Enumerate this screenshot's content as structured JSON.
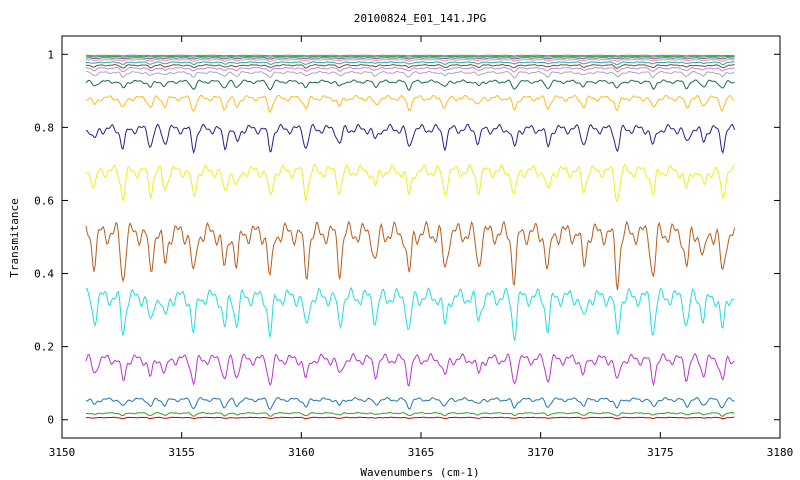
{
  "chart_data": {
    "type": "line",
    "title": "20100824_E01_141.JPG",
    "xlabel": "Wavenumbers (cm-1)",
    "ylabel": "Transmitance",
    "xlim": [
      3150,
      3180
    ],
    "ylim": [
      -0.05,
      1.05
    ],
    "xticks": [
      3150,
      3155,
      3160,
      3165,
      3170,
      3175,
      3180
    ],
    "yticks": [
      0,
      0.2,
      0.4,
      0.6,
      0.8,
      1
    ],
    "ytick_labels": [
      "0",
      "0.2",
      "0.4",
      "0.6",
      "0.8",
      "1"
    ],
    "x_range": [
      3151,
      3178.1
    ],
    "grid": false,
    "legend": "none",
    "absorption_lines": [
      3151.35,
      3152.55,
      3153.7,
      3154.3,
      3155.5,
      3156.8,
      3157.3,
      3158.7,
      3160.2,
      3161.6,
      3163.1,
      3164.5,
      3166.0,
      3167.4,
      3168.9,
      3170.3,
      3171.8,
      3173.2,
      3174.7,
      3176.1,
      3176.8,
      3177.6
    ],
    "series": [
      {
        "baseline": 0.006,
        "depth": 0.003,
        "color": "#cc0000"
      },
      {
        "baseline": 0.018,
        "depth": 0.008,
        "color": "#2ca02c"
      },
      {
        "baseline": 0.055,
        "depth": 0.025,
        "color": "#1f77b4"
      },
      {
        "baseline": 0.165,
        "depth": 0.07,
        "color": "#bb33cc"
      },
      {
        "baseline": 0.335,
        "depth": 0.11,
        "color": "#22dddd"
      },
      {
        "baseline": 0.51,
        "depth": 0.14,
        "color": "#b85c1a"
      },
      {
        "baseline": 0.68,
        "depth": 0.08,
        "color": "#eeee22"
      },
      {
        "baseline": 0.795,
        "depth": 0.06,
        "color": "#22228c"
      },
      {
        "baseline": 0.88,
        "depth": 0.035,
        "color": "#ffbb22"
      },
      {
        "baseline": 0.925,
        "depth": 0.022,
        "color": "#1b6e3b"
      },
      {
        "baseline": 0.95,
        "depth": 0.014,
        "color": "#aaaaaa"
      },
      {
        "baseline": 0.962,
        "depth": 0.01,
        "color": "#bb88dd"
      },
      {
        "baseline": 0.97,
        "depth": 0.008,
        "color": "#884422"
      },
      {
        "baseline": 0.978,
        "depth": 0.006,
        "color": "#22aaaa"
      },
      {
        "baseline": 0.985,
        "depth": 0.004,
        "color": "#ff8888"
      },
      {
        "baseline": 0.99,
        "depth": 0.003,
        "color": "#5555cc"
      },
      {
        "baseline": 0.994,
        "depth": 0.002,
        "color": "#33aa33"
      },
      {
        "baseline": 0.997,
        "depth": 0.0015,
        "color": "#cc44cc"
      }
    ]
  }
}
